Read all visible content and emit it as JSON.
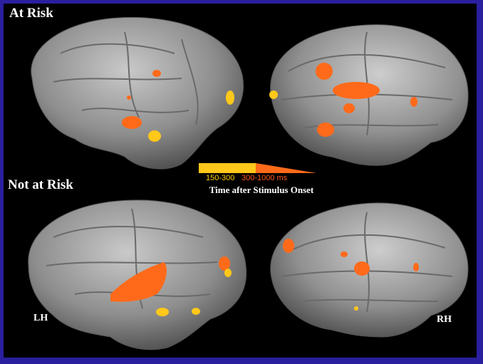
{
  "figure": {
    "title_top": "At Risk",
    "title_bottom": "Not at Risk",
    "hemisphere_left": "LH",
    "hemisphere_right": "RH"
  },
  "legend": {
    "range_early": "150-300",
    "range_late": "300-1000 ms",
    "caption": "Time after Stimulus Onset"
  },
  "colors": {
    "background_border": "#2a1f9e",
    "brain_gray": "#9a9a9a",
    "early_activation": "#ffc81a",
    "late_activation": "#ff6a1a"
  }
}
